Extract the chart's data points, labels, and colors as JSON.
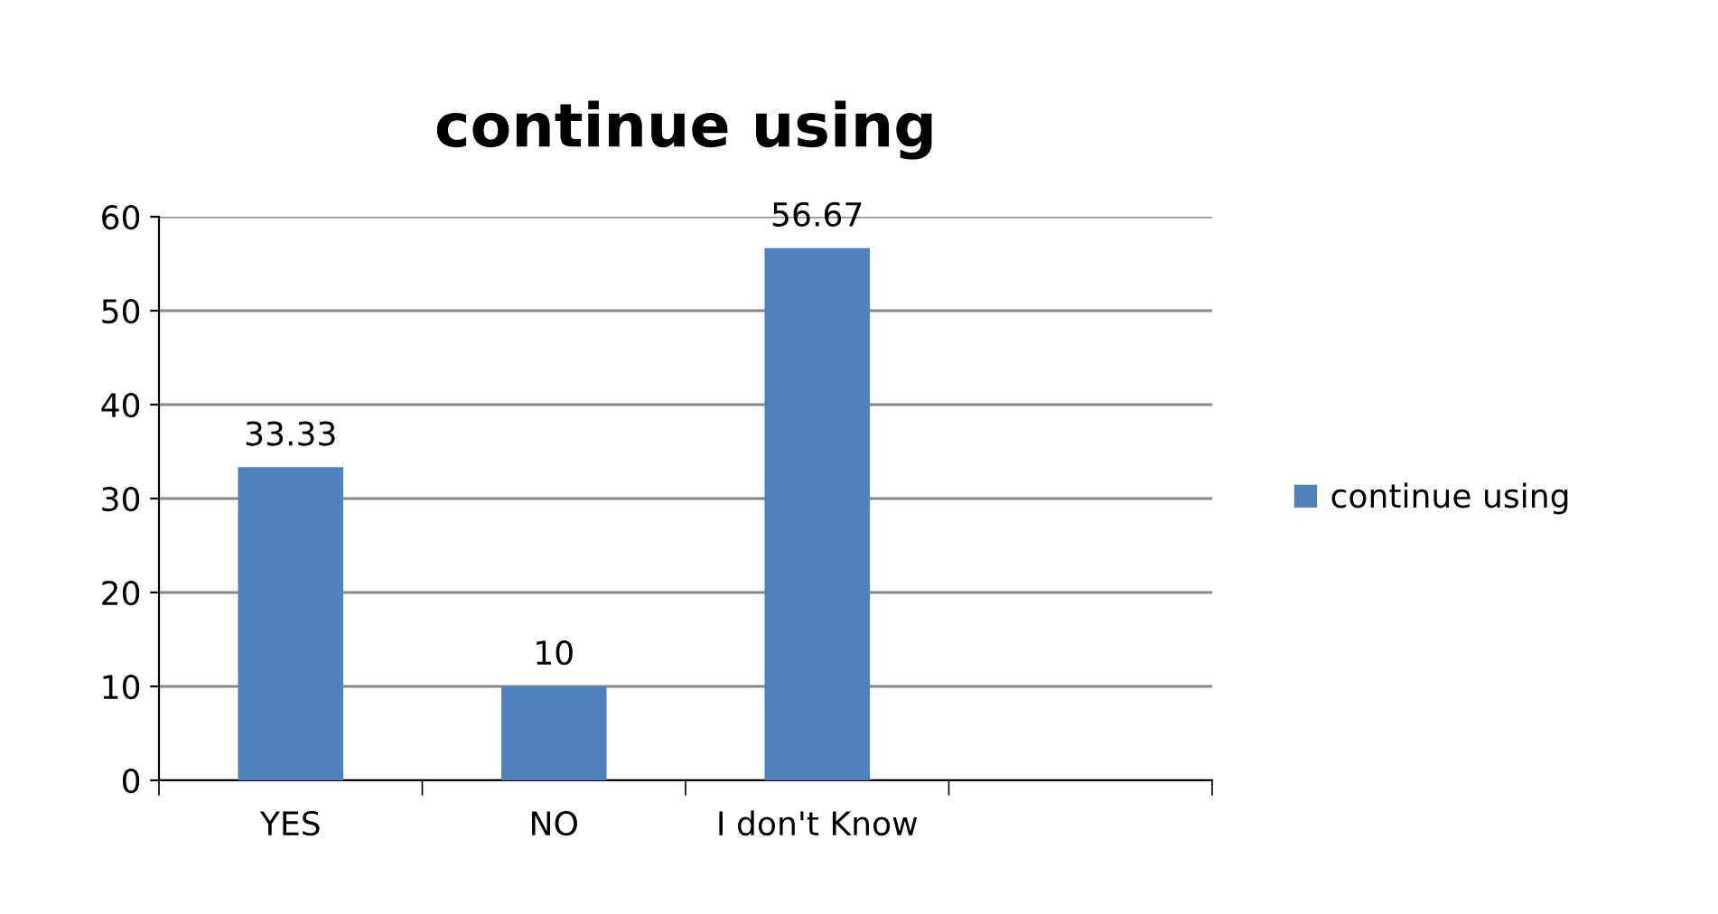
{
  "chart_data": {
    "type": "bar",
    "title": "continue using",
    "categories": [
      "YES",
      "NO",
      "I don't Know",
      null
    ],
    "series": [
      {
        "name": "continue using",
        "color": "#4f81bd",
        "values": [
          33.33,
          10,
          56.67,
          null
        ]
      }
    ],
    "ylim": [
      0,
      60
    ],
    "yticks": [
      0,
      10,
      20,
      30,
      40,
      50,
      60
    ],
    "grid": "y",
    "legend": "right",
    "data_labels": true
  }
}
